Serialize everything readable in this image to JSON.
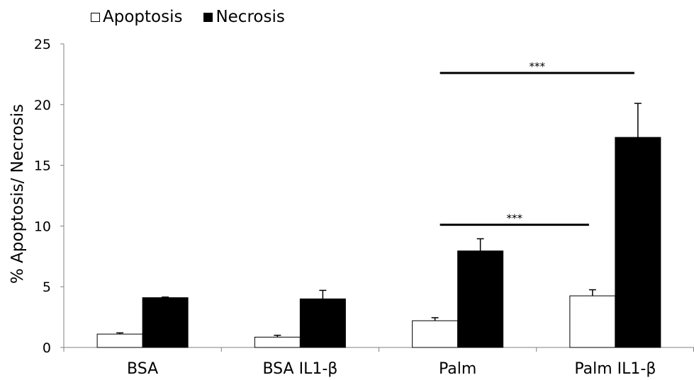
{
  "chart_data": {
    "type": "bar",
    "title": "",
    "xlabel": "",
    "ylabel": "% Apoptosis/ Necrosis",
    "ylim": [
      0,
      25
    ],
    "yticks": [
      0,
      5,
      10,
      15,
      20,
      25
    ],
    "categories": [
      "BSA",
      "BSA IL1-β",
      "Palm",
      "Palm IL1-β"
    ],
    "series": [
      {
        "name": "Apoptosis",
        "values": [
          1.1,
          0.85,
          2.2,
          4.25
        ],
        "errors": [
          0.1,
          0.15,
          0.25,
          0.5
        ],
        "color": "#ffffff"
      },
      {
        "name": "Necrosis",
        "values": [
          4.1,
          4.0,
          7.95,
          17.3
        ],
        "errors": [
          0.05,
          0.7,
          1.0,
          2.8
        ],
        "color": "#000000"
      }
    ],
    "legend_position": "top-left",
    "annotations": [
      {
        "label": "***",
        "from_category": "Palm",
        "from_series": "Necrosis",
        "to_category": "Palm IL1-β",
        "to_series": "Apoptosis",
        "y": 10.1
      },
      {
        "label": "***",
        "from_category": "Palm",
        "from_series": "Necrosis",
        "to_category": "Palm IL1-β",
        "to_series": "Necrosis",
        "y": 22.6
      }
    ]
  }
}
